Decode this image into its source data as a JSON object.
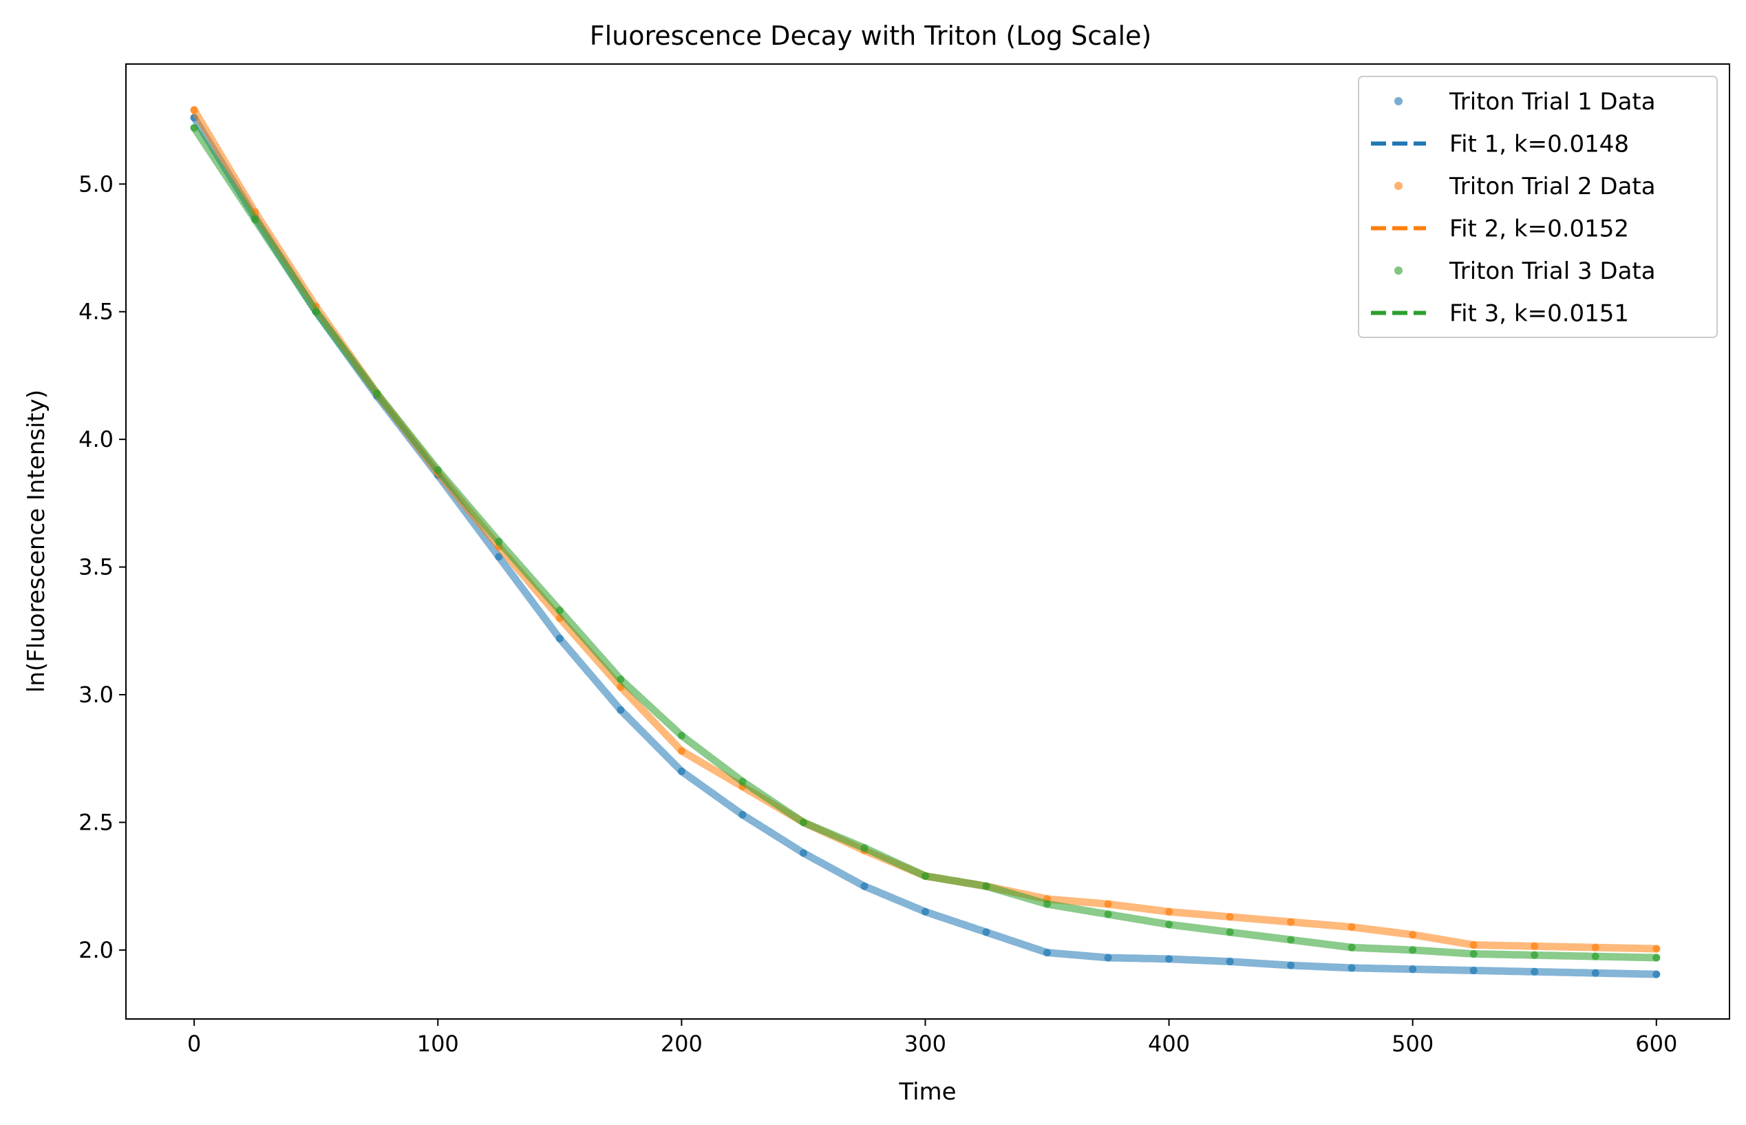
{
  "chart_data": {
    "type": "scatter",
    "title": "Fluorescence Decay with Triton (Log Scale)",
    "xlabel": "Time",
    "ylabel": "ln(Fluorescence Intensity)",
    "xlim": [
      -28,
      630
    ],
    "ylim": [
      1.73,
      5.47
    ],
    "xticks": [
      0,
      100,
      200,
      300,
      400,
      500,
      600
    ],
    "xtick_labels": [
      "0",
      "100",
      "200",
      "300",
      "400",
      "500",
      "600"
    ],
    "yticks": [
      2.0,
      2.5,
      3.0,
      3.5,
      4.0,
      4.5,
      5.0
    ],
    "ytick_labels": [
      "2.0",
      "2.5",
      "3.0",
      "3.5",
      "4.0",
      "4.5",
      "5.0"
    ],
    "grid": false,
    "legend_position": "top-right",
    "legend": [
      {
        "label": "Triton Trial 1 Data",
        "kind": "marker",
        "color": "#1f77b4"
      },
      {
        "label": "Fit 1, k=0.0148",
        "kind": "dashed",
        "color": "#1f77b4"
      },
      {
        "label": "Triton Trial 2 Data",
        "kind": "marker",
        "color": "#ff7f0e"
      },
      {
        "label": "Fit 2, k=0.0152",
        "kind": "dashed",
        "color": "#ff7f0e"
      },
      {
        "label": "Triton Trial 3 Data",
        "kind": "marker",
        "color": "#2ca02c"
      },
      {
        "label": "Fit 3, k=0.0151",
        "kind": "dashed",
        "color": "#2ca02c"
      }
    ],
    "series": [
      {
        "name": "Triton Trial 1 Data",
        "color": "#1f77b4",
        "x": [
          0,
          25,
          50,
          75,
          100,
          125,
          150,
          175,
          200,
          225,
          250,
          275,
          300,
          325,
          350,
          375,
          400,
          425,
          450,
          475,
          500,
          525,
          550,
          575,
          600
        ],
        "y": [
          5.26,
          4.87,
          4.5,
          4.17,
          3.86,
          3.54,
          3.22,
          2.94,
          2.7,
          2.53,
          2.38,
          2.25,
          2.15,
          2.07,
          1.99,
          1.97,
          1.965,
          1.955,
          1.94,
          1.93,
          1.925,
          1.92,
          1.915,
          1.91,
          1.905
        ]
      },
      {
        "name": "Triton Trial 2 Data",
        "color": "#ff7f0e",
        "x": [
          0,
          25,
          50,
          75,
          100,
          125,
          150,
          175,
          200,
          225,
          250,
          275,
          300,
          325,
          350,
          375,
          400,
          425,
          450,
          475,
          500,
          525,
          550,
          575,
          600
        ],
        "y": [
          5.29,
          4.89,
          4.52,
          4.18,
          3.87,
          3.58,
          3.3,
          3.03,
          2.78,
          2.64,
          2.5,
          2.39,
          2.29,
          2.25,
          2.2,
          2.18,
          2.15,
          2.13,
          2.11,
          2.09,
          2.06,
          2.02,
          2.015,
          2.01,
          2.005
        ]
      },
      {
        "name": "Triton Trial 3 Data",
        "color": "#2ca02c",
        "x": [
          0,
          25,
          50,
          75,
          100,
          125,
          150,
          175,
          200,
          225,
          250,
          275,
          300,
          325,
          350,
          375,
          400,
          425,
          450,
          475,
          500,
          525,
          550,
          575,
          600
        ],
        "y": [
          5.22,
          4.86,
          4.5,
          4.18,
          3.88,
          3.6,
          3.33,
          3.06,
          2.84,
          2.66,
          2.5,
          2.4,
          2.29,
          2.25,
          2.18,
          2.14,
          2.1,
          2.07,
          2.04,
          2.01,
          2.0,
          1.985,
          1.98,
          1.975,
          1.97
        ]
      }
    ]
  }
}
